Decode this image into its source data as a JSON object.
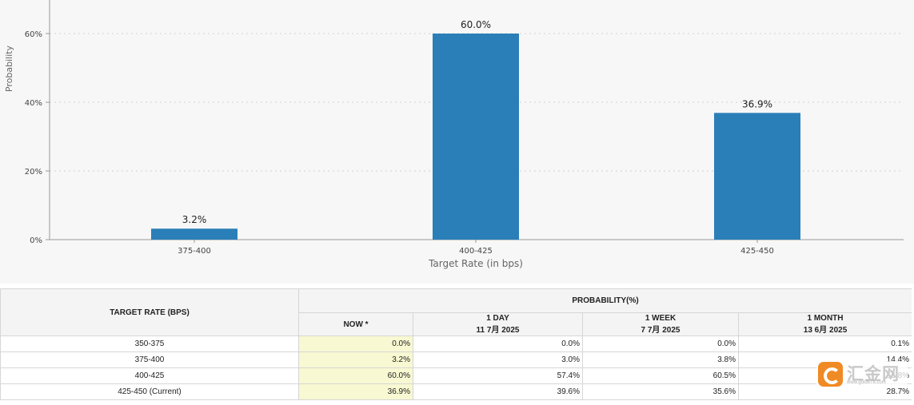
{
  "chart_data": {
    "type": "bar",
    "xlabel": "Target Rate (in bps)",
    "ylabel": "Probability",
    "categories": [
      "375-400",
      "400-425",
      "425-450"
    ],
    "values": [
      3.2,
      60.0,
      36.9
    ],
    "data_labels": [
      "3.2%",
      "60.0%",
      "36.9%"
    ],
    "yticks": [
      "0%",
      "20%",
      "40%",
      "60%"
    ],
    "ytick_values": [
      0,
      20,
      40,
      60
    ],
    "ylim": [
      0,
      60
    ],
    "grid": true,
    "bar_color": "#2a7fb8"
  },
  "table": {
    "header_left": "TARGET RATE (BPS)",
    "header_group": "PROBABILITY(%)",
    "columns": [
      {
        "title": "NOW *",
        "sub": ""
      },
      {
        "title": "1 DAY",
        "sub": "11 7月 2025"
      },
      {
        "title": "1 WEEK",
        "sub": "7 7月 2025"
      },
      {
        "title": "1 MONTH",
        "sub": "13 6月 2025"
      }
    ],
    "rows": [
      {
        "rate": "350-375",
        "cells": [
          "0.0%",
          "0.0%",
          "0.0%",
          "0.1%"
        ]
      },
      {
        "rate": "375-400",
        "cells": [
          "3.2%",
          "3.0%",
          "3.8%",
          "14.4%"
        ]
      },
      {
        "rate": "400-425",
        "cells": [
          "60.0%",
          "57.4%",
          "60.5%",
          "56.8%"
        ]
      },
      {
        "rate": "425-450 (Current)",
        "cells": [
          "36.9%",
          "39.6%",
          "35.6%",
          "28.7%"
        ]
      }
    ],
    "now_highlight_color": "#f8f8d2"
  },
  "watermark": {
    "brand": "汇金网",
    "url": "www.gold678.com"
  }
}
